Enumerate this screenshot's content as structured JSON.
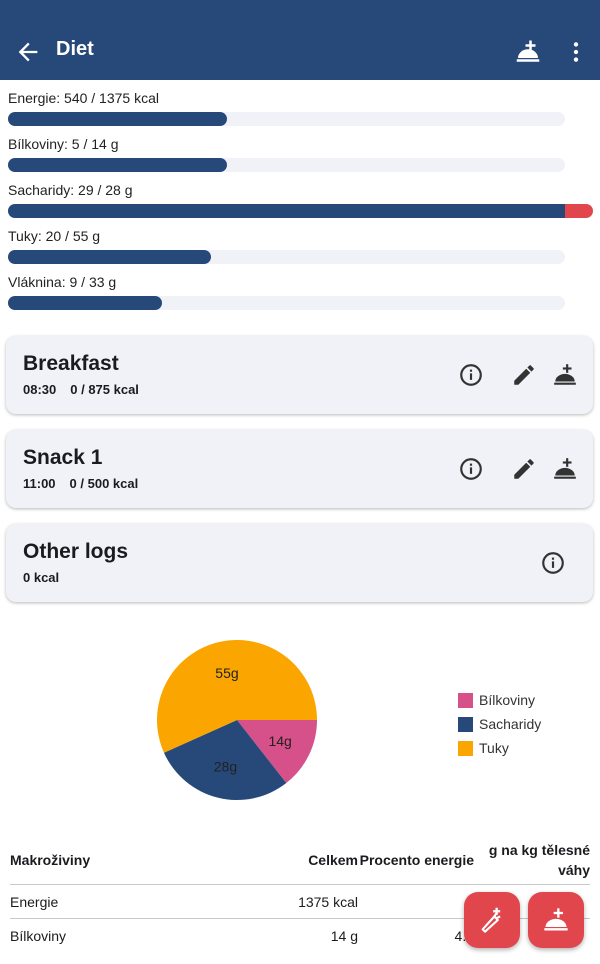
{
  "appbar": {
    "title": "Diet",
    "icons": [
      "arrow-back-icon",
      "add-meal-icon",
      "more-vert-icon"
    ],
    "color": "#27497a"
  },
  "nutrients": [
    {
      "label": "Energie: 540 / 1375 kcal",
      "fraction": 0.393
    },
    {
      "label": "Bílkoviny: 5 / 14 g",
      "fraction": 0.393
    },
    {
      "label": "Sacharidy: 29 / 28 g",
      "fraction": 1.0,
      "over_fraction": 0.05
    },
    {
      "label": "Tuky: 20 / 55 g",
      "fraction": 0.364
    },
    {
      "label": "Vláknina: 9 / 33 g",
      "fraction": 0.277
    }
  ],
  "meals": [
    {
      "name": "Breakfast",
      "time": "08:30",
      "energy": "0 / 875 kcal"
    },
    {
      "name": "Snack 1",
      "time": "11:00",
      "energy": "0 / 500 kcal"
    }
  ],
  "other_logs": {
    "name": "Other logs",
    "energy": "0 kcal"
  },
  "chart_data": {
    "type": "pie",
    "slices": [
      {
        "label": "Bílkoviny",
        "value": 14,
        "text": "14g",
        "color": "#d6508a"
      },
      {
        "label": "Sacharidy",
        "value": 28,
        "text": "28g",
        "color": "#27497a"
      },
      {
        "label": "Tuky",
        "value": 55,
        "text": "55g",
        "color": "#fba500"
      }
    ],
    "legend_position": "right"
  },
  "table": {
    "headers": [
      "Makroživiny",
      "Celkem",
      "Procento energie",
      "g na kg tělesné váhy"
    ],
    "rows": [
      [
        "Energie",
        "1375 kcal",
        "",
        ""
      ],
      [
        "Bílkoviny",
        "14 g",
        "4...",
        ""
      ]
    ]
  },
  "fabs": [
    {
      "icon": "add-ingredient-icon"
    },
    {
      "icon": "add-meal-icon"
    }
  ],
  "colors": {
    "accent": "#27497a",
    "over": "#e0464c",
    "fab": "#e0464c",
    "card": "#f1f2f8"
  }
}
